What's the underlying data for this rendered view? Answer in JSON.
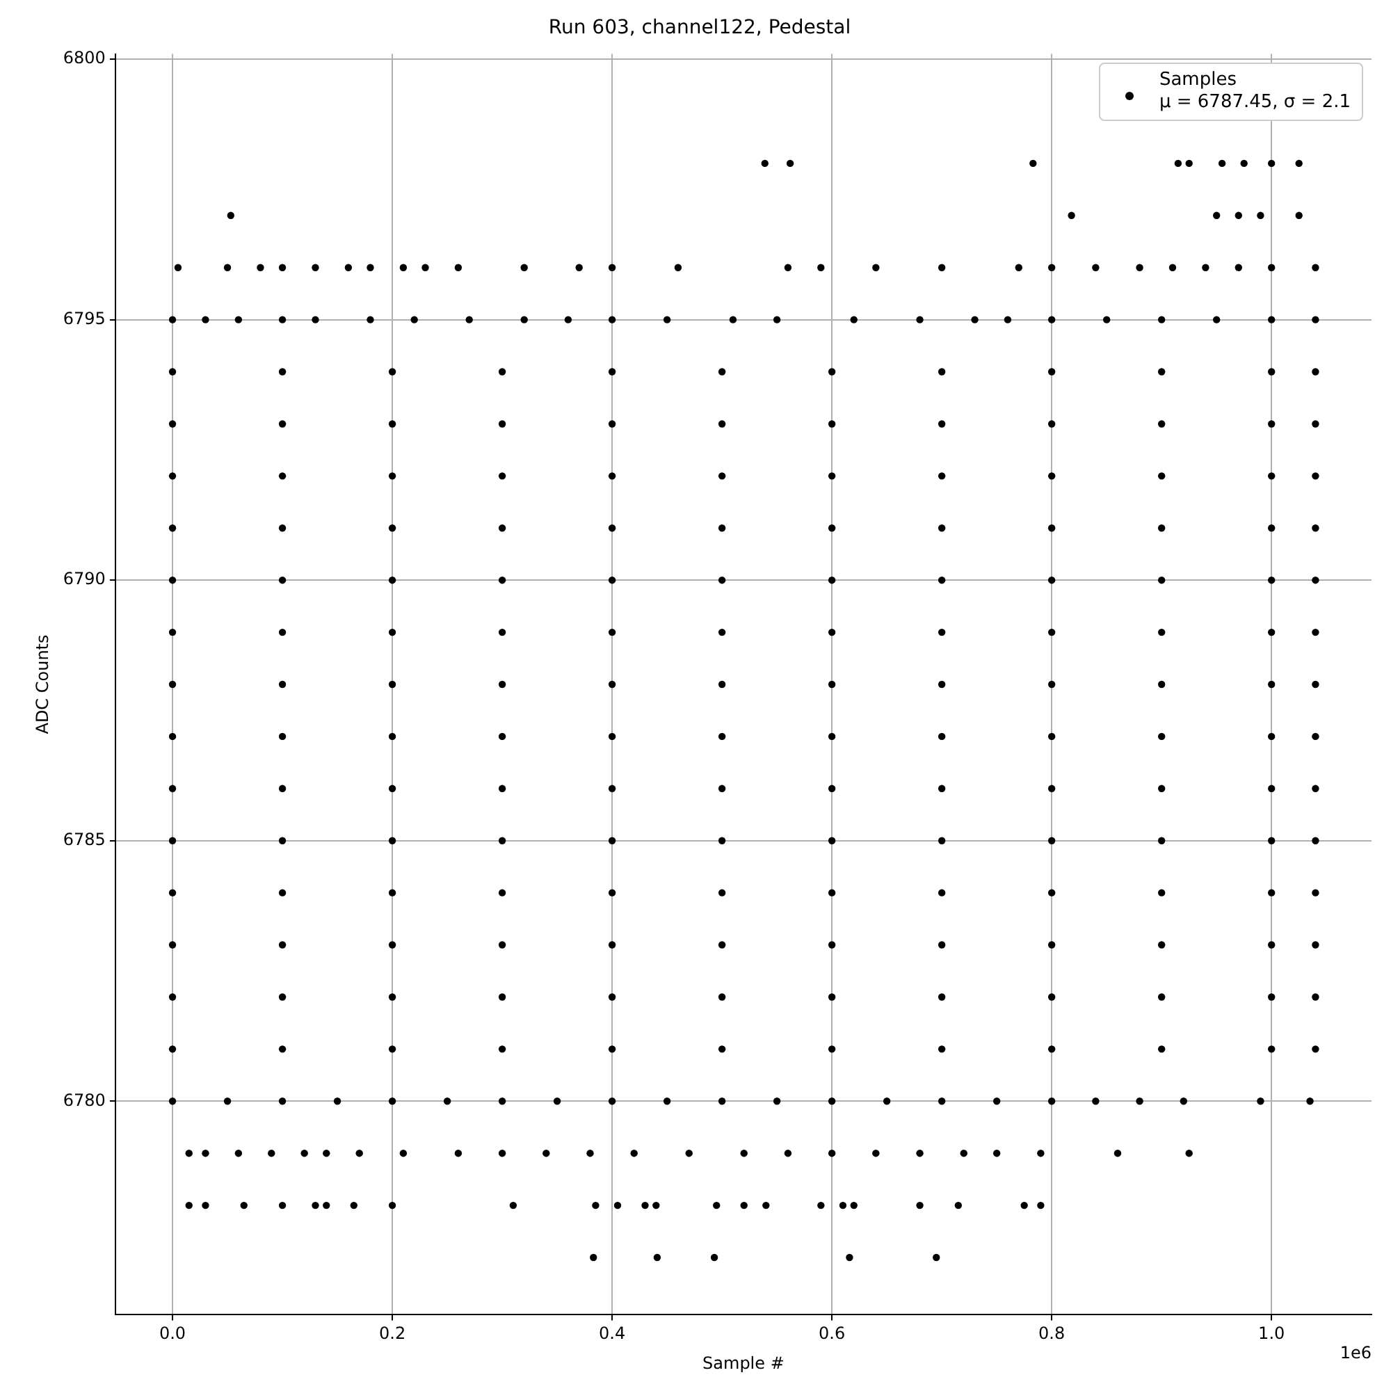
{
  "chart_data": {
    "type": "scatter",
    "title": "Run 603, channel122, Pedestal",
    "xlabel": "Sample #",
    "ylabel": "ADC Counts",
    "xlim": [
      -0.052,
      1.091
    ],
    "ylim": [
      6775.9,
      6800.1
    ],
    "xticks": [
      {
        "value": 0,
        "label": "0.0"
      },
      0.2,
      0.4,
      0.6,
      0.8,
      {
        "value": 1,
        "label": "1.0"
      }
    ],
    "yticks": [
      6780,
      6785,
      6790,
      6795,
      6800
    ],
    "grid": true,
    "legend": "top right",
    "marker": "circle",
    "annotations": [
      "1e6"
    ],
    "series": [
      {
        "name": "Samples\nμ = 6787.45, σ = 2.1",
        "color": "#000000",
        "x": [
          0.383,
          0.441,
          0.493,
          0.616,
          0.695,
          0.015,
          0.03,
          0.065,
          0.1,
          0.13,
          0.14,
          0.165,
          0.2,
          0.31,
          0.385,
          0.405,
          0.43,
          0.44,
          0.495,
          0.52,
          0.54,
          0.59,
          0.61,
          0.62,
          0.68,
          0.715,
          0.775,
          0.79,
          0.015,
          0.03,
          0.06,
          0.09,
          0.12,
          0.14,
          0.17,
          0.21,
          0.26,
          0.3,
          0.34,
          0.38,
          0.42,
          0.47,
          0.52,
          0.56,
          0.6,
          0.64,
          0.68,
          0.72,
          0.75,
          0.79,
          0.86,
          0.925,
          0,
          0.05,
          0.1,
          0.15,
          0.2,
          0.25,
          0.3,
          0.35,
          0.4,
          0.45,
          0.5,
          0.55,
          0.6,
          0.65,
          0.7,
          0.75,
          0.8,
          0.84,
          0.88,
          0.92,
          0.99,
          1.035,
          0,
          0.1,
          0.2,
          0.3,
          0.4,
          0.5,
          0.6,
          0.7,
          0.8,
          0.9,
          1,
          1.04,
          0,
          0.1,
          0.2,
          0.3,
          0.4,
          0.5,
          0.6,
          0.7,
          0.8,
          0.9,
          1,
          1.04,
          0,
          0.1,
          0.2,
          0.3,
          0.4,
          0.5,
          0.6,
          0.7,
          0.8,
          0.9,
          1,
          1.04,
          0,
          0.1,
          0.2,
          0.3,
          0.4,
          0.5,
          0.6,
          0.7,
          0.8,
          0.9,
          1,
          1.04,
          0,
          0.1,
          0.2,
          0.3,
          0.4,
          0.5,
          0.6,
          0.7,
          0.8,
          0.9,
          1,
          1.04,
          0,
          0.1,
          0.2,
          0.3,
          0.4,
          0.5,
          0.6,
          0.7,
          0.8,
          0.9,
          1,
          1.04,
          0,
          0.1,
          0.2,
          0.3,
          0.4,
          0.5,
          0.6,
          0.7,
          0.8,
          0.9,
          1,
          1.04,
          0,
          0.1,
          0.2,
          0.3,
          0.4,
          0.5,
          0.6,
          0.7,
          0.8,
          0.9,
          1,
          1.04,
          0,
          0.1,
          0.2,
          0.3,
          0.4,
          0.5,
          0.6,
          0.7,
          0.8,
          0.9,
          1,
          1.04,
          0,
          0.1,
          0.2,
          0.3,
          0.4,
          0.5,
          0.6,
          0.7,
          0.8,
          0.9,
          1,
          1.04,
          0,
          0.1,
          0.2,
          0.3,
          0.4,
          0.5,
          0.6,
          0.7,
          0.8,
          0.9,
          1,
          1.04,
          0,
          0.1,
          0.2,
          0.3,
          0.4,
          0.5,
          0.6,
          0.7,
          0.8,
          0.9,
          1,
          1.04,
          0,
          0.1,
          0.2,
          0.3,
          0.4,
          0.5,
          0.6,
          0.7,
          0.8,
          0.9,
          1,
          1.04,
          0,
          0.1,
          0.2,
          0.3,
          0.4,
          0.5,
          0.6,
          0.7,
          0.8,
          0.9,
          1,
          1.04,
          0,
          0.03,
          0.06,
          0.1,
          0.13,
          0.18,
          0.22,
          0.27,
          0.32,
          0.36,
          0.4,
          0.45,
          0.51,
          0.55,
          0.62,
          0.68,
          0.73,
          0.76,
          0.8,
          0.85,
          0.9,
          0.95,
          1,
          1.04,
          0.005,
          0.05,
          0.08,
          0.1,
          0.13,
          0.16,
          0.18,
          0.21,
          0.23,
          0.26,
          0.32,
          0.37,
          0.4,
          0.46,
          0.56,
          0.59,
          0.64,
          0.7,
          0.77,
          0.8,
          0.84,
          0.88,
          0.91,
          0.94,
          0.97,
          1,
          1.04,
          0.053,
          0.818,
          0.95,
          0.97,
          0.99,
          1.025,
          0.539,
          0.562,
          0.783,
          0.915,
          0.925,
          0.955,
          0.975,
          1,
          1.025
        ],
        "values": [
          6777,
          6777,
          6777,
          6777,
          6777,
          6778,
          6778,
          6778,
          6778,
          6778,
          6778,
          6778,
          6778,
          6778,
          6778,
          6778,
          6778,
          6778,
          6778,
          6778,
          6778,
          6778,
          6778,
          6778,
          6778,
          6778,
          6778,
          6778,
          6779,
          6779,
          6779,
          6779,
          6779,
          6779,
          6779,
          6779,
          6779,
          6779,
          6779,
          6779,
          6779,
          6779,
          6779,
          6779,
          6779,
          6779,
          6779,
          6779,
          6779,
          6779,
          6779,
          6779,
          6780,
          6780,
          6780,
          6780,
          6780,
          6780,
          6780,
          6780,
          6780,
          6780,
          6780,
          6780,
          6780,
          6780,
          6780,
          6780,
          6780,
          6780,
          6780,
          6780,
          6780,
          6780,
          6781,
          6781,
          6781,
          6781,
          6781,
          6781,
          6781,
          6781,
          6781,
          6781,
          6781,
          6781,
          6782,
          6782,
          6782,
          6782,
          6782,
          6782,
          6782,
          6782,
          6782,
          6782,
          6782,
          6782,
          6783,
          6783,
          6783,
          6783,
          6783,
          6783,
          6783,
          6783,
          6783,
          6783,
          6783,
          6783,
          6784,
          6784,
          6784,
          6784,
          6784,
          6784,
          6784,
          6784,
          6784,
          6784,
          6784,
          6784,
          6785,
          6785,
          6785,
          6785,
          6785,
          6785,
          6785,
          6785,
          6785,
          6785,
          6785,
          6785,
          6786,
          6786,
          6786,
          6786,
          6786,
          6786,
          6786,
          6786,
          6786,
          6786,
          6786,
          6786,
          6787,
          6787,
          6787,
          6787,
          6787,
          6787,
          6787,
          6787,
          6787,
          6787,
          6787,
          6787,
          6788,
          6788,
          6788,
          6788,
          6788,
          6788,
          6788,
          6788,
          6788,
          6788,
          6788,
          6788,
          6789,
          6789,
          6789,
          6789,
          6789,
          6789,
          6789,
          6789,
          6789,
          6789,
          6789,
          6789,
          6790,
          6790,
          6790,
          6790,
          6790,
          6790,
          6790,
          6790,
          6790,
          6790,
          6790,
          6790,
          6791,
          6791,
          6791,
          6791,
          6791,
          6791,
          6791,
          6791,
          6791,
          6791,
          6791,
          6791,
          6792,
          6792,
          6792,
          6792,
          6792,
          6792,
          6792,
          6792,
          6792,
          6792,
          6792,
          6792,
          6793,
          6793,
          6793,
          6793,
          6793,
          6793,
          6793,
          6793,
          6793,
          6793,
          6793,
          6793,
          6794,
          6794,
          6794,
          6794,
          6794,
          6794,
          6794,
          6794,
          6794,
          6794,
          6794,
          6794,
          6795,
          6795,
          6795,
          6795,
          6795,
          6795,
          6795,
          6795,
          6795,
          6795,
          6795,
          6795,
          6795,
          6795,
          6795,
          6795,
          6795,
          6795,
          6795,
          6795,
          6795,
          6795,
          6795,
          6795,
          6796,
          6796,
          6796,
          6796,
          6796,
          6796,
          6796,
          6796,
          6796,
          6796,
          6796,
          6796,
          6796,
          6796,
          6796,
          6796,
          6796,
          6796,
          6796,
          6796,
          6796,
          6796,
          6796,
          6796,
          6796,
          6796,
          6796,
          6797,
          6797,
          6797,
          6797,
          6797,
          6797,
          6798,
          6798,
          6798,
          6798,
          6798,
          6798,
          6798,
          6798,
          6798
        ]
      }
    ]
  }
}
